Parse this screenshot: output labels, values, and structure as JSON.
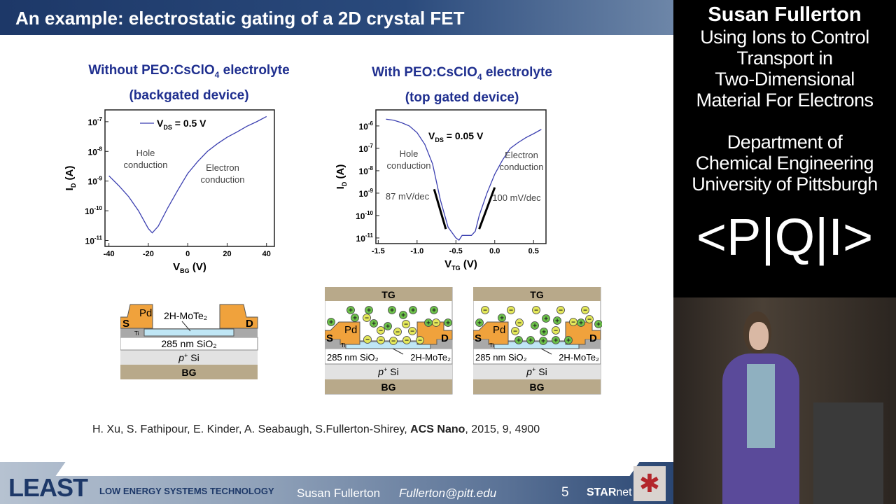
{
  "title": "An example:  electrostatic gating of a 2D crystal FET",
  "left_panel": {
    "title_line1_pre": "Without PEO:CsClO",
    "title_sub": "4",
    "title_line1_post": " electrolyte",
    "title_line2": "(backgated device)"
  },
  "right_panel": {
    "title_line1_pre": "With PEO:CsClO",
    "title_sub": "4",
    "title_line1_post": " electrolyte",
    "title_line2": "(top gated device)"
  },
  "chart_data": [
    {
      "type": "line",
      "xlabel": "V",
      "xlabel_sub": "BG",
      "xlabel_unit": " (V)",
      "ylabel": "I",
      "ylabel_sub": "D",
      "ylabel_unit": " (A)",
      "yscale": "log",
      "xlim": [
        -42,
        44
      ],
      "ylim": [
        6.3e-12,
        2.5e-07
      ],
      "xticks": [
        -40,
        -20,
        0,
        20,
        40
      ],
      "xtick_labels": [
        "-40",
        "-20",
        "0",
        "20",
        "40"
      ],
      "yticks": [
        -7,
        -8,
        -9,
        -10,
        -11
      ],
      "legend": {
        "label": "V",
        "sub": "DS",
        "rest": " = 0.5 V",
        "position": "top"
      },
      "annotations": [
        {
          "text1": "Hole",
          "text2": "conduction"
        },
        {
          "text1": "Electron",
          "text2": "conduction"
        }
      ],
      "series": [
        {
          "color": "#3b3fb0",
          "x": [
            -40,
            -35,
            -30,
            -25,
            -20,
            -18,
            -15,
            -10,
            -5,
            0,
            5,
            10,
            15,
            20,
            25,
            30,
            35,
            40
          ],
          "y": [
            1.5e-09,
            7e-10,
            3e-10,
            1e-10,
            2.5e-11,
            1.8e-11,
            3e-11,
            1.3e-10,
            5e-10,
            1.8e-09,
            4.5e-09,
            1e-08,
            1.8e-08,
            3e-08,
            4.5e-08,
            7e-08,
            1e-07,
            1.5e-07
          ]
        }
      ]
    },
    {
      "type": "line",
      "xlabel": "V",
      "xlabel_sub": "TG",
      "xlabel_unit": " (V)",
      "ylabel": "I",
      "ylabel_sub": "D",
      "ylabel_unit": " (A)",
      "yscale": "log",
      "xlim": [
        -1.53,
        0.66
      ],
      "ylim": [
        5.6e-12,
        5.2e-06
      ],
      "xticks": [
        -1.5,
        -1.0,
        -0.5,
        0.0,
        0.5
      ],
      "xtick_labels": [
        "-1.5",
        "-1.0",
        "-0.5",
        "0.0",
        "0.5"
      ],
      "yticks": [
        -6,
        -7,
        -8,
        -9,
        -10,
        -11
      ],
      "legend": {
        "label": "V",
        "sub": "DS",
        "rest": " = 0.05 V",
        "position": "top"
      },
      "annotations": [
        {
          "text1": "Hole",
          "text2": "conduction"
        },
        {
          "text1": "Electron",
          "text2": "conduction"
        },
        {
          "text1": "87 mV/dec"
        },
        {
          "text1": "100 mV/dec"
        }
      ],
      "series": [
        {
          "color": "#3b3fb0",
          "x": [
            -1.4,
            -1.3,
            -1.2,
            -1.1,
            -1.0,
            -0.9,
            -0.8,
            -0.7,
            -0.6,
            -0.5,
            -0.46,
            -0.42,
            -0.3,
            -0.25,
            -0.2,
            -0.1,
            0.0,
            0.1,
            0.2,
            0.3,
            0.4,
            0.5,
            0.6
          ],
          "y": [
            2e-06,
            1.8e-06,
            1.4e-06,
            1e-06,
            5e-07,
            1.5e-07,
            2e-08,
            5e-10,
            3e-11,
            1e-11,
            8e-12,
            1.3e-11,
            1.3e-11,
            2e-11,
            1e-10,
            1e-09,
            7e-09,
            3e-08,
            1e-07,
            1.8e-07,
            3e-07,
            4.5e-07,
            7e-07
          ]
        }
      ]
    }
  ],
  "devices": {
    "tg": "TG",
    "bg": "BG",
    "pd": "Pd",
    "s": "S",
    "d": "D",
    "ti": "Ti",
    "sio2": "285 nm SiO₂",
    "mote2": "2H-MoTe₂",
    "psi_p": "p",
    "psi_sup": "+",
    "psi_si": " Si",
    "plus": "+",
    "minus": "−"
  },
  "reference": {
    "authors": "H. Xu, S. Fathipour, E. Kinder, A. Seabaugh, S.Fullerton-Shirey, ",
    "journal": "ACS Nano",
    "rest": ", 2015, 9, 4900"
  },
  "footer": {
    "logo": "LEAST",
    "logo_text": "LOW ENERGY SYSTEMS TECHNOLOGY",
    "name": "Susan Fullerton",
    "email": "Fullerton@pitt.edu",
    "page": "5",
    "starnet_bold": "STAR",
    "starnet_rest": "net"
  },
  "sidebar": {
    "name": "Susan Fullerton",
    "talk": [
      "Using Ions to Control",
      "Transport in",
      "Two-Dimensional",
      "Material For Electrons"
    ],
    "dept": [
      "Department of",
      "Chemical Engineering",
      "University of Pittsburgh"
    ],
    "logo": "<P|Q|I>"
  }
}
